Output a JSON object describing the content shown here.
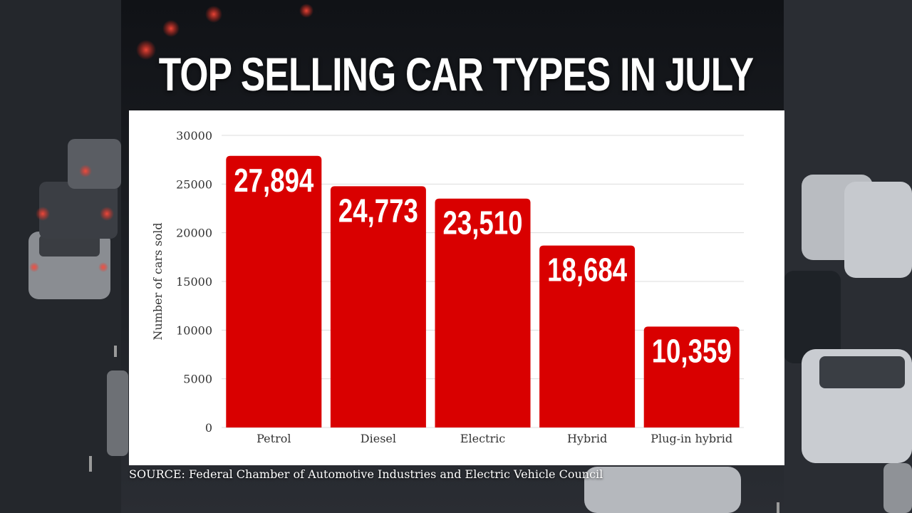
{
  "title": "TOP SELLING CAR TYPES IN JULY",
  "source": "SOURCE: Federal Chamber of Automotive Industries and Electric Vehicle Council",
  "chart_data": {
    "type": "bar",
    "title": "TOP SELLING CAR TYPES IN JULY",
    "xlabel": "",
    "ylabel": "Number of cars sold",
    "categories": [
      "Petrol",
      "Diesel",
      "Electric",
      "Hybrid",
      "Plug-in hybrid"
    ],
    "values": [
      27894,
      24773,
      23510,
      18684,
      10359
    ],
    "value_labels": [
      "27,894",
      "24,773",
      "23,510",
      "18,684",
      "10,359"
    ],
    "ylim": [
      0,
      30000
    ],
    "yticks": [
      0,
      5000,
      10000,
      15000,
      20000,
      25000,
      30000
    ],
    "ytick_labels": [
      "0",
      "5000",
      "10000",
      "15000",
      "20000",
      "25000",
      "30000"
    ],
    "grid": true,
    "legend": "none",
    "bar_color": "#d90000"
  }
}
